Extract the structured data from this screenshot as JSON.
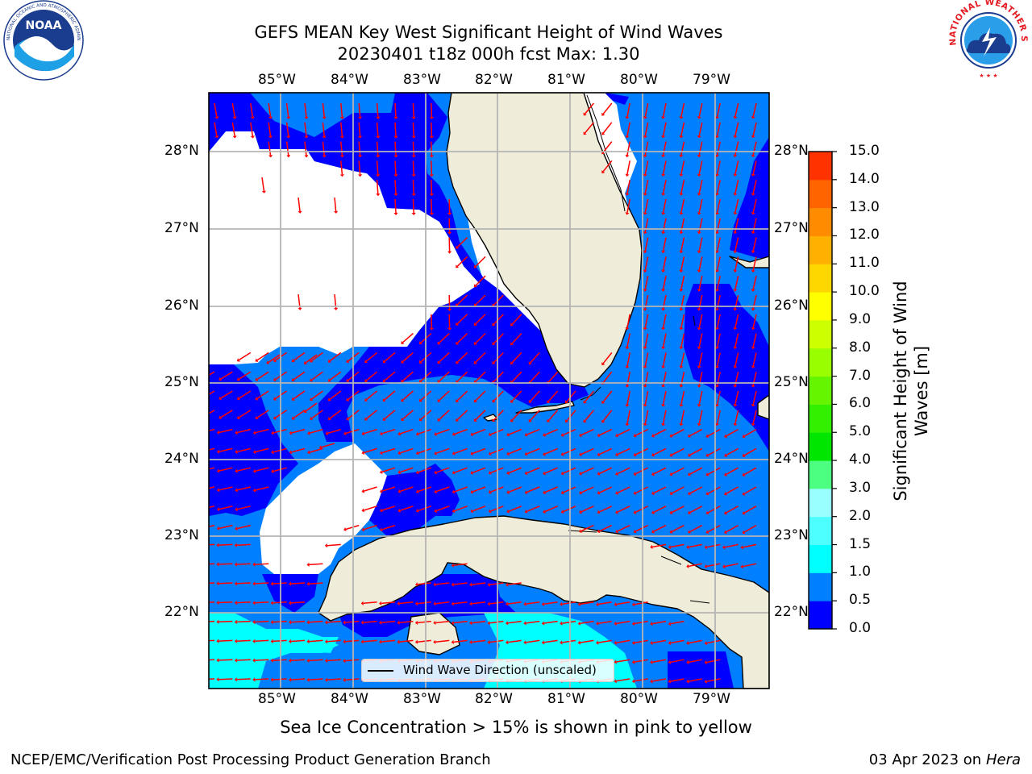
{
  "header": {
    "title_line1": "GEFS MEAN Key West Significant Height of Wind Waves",
    "title_line2": "20230401 t18z 000h fcst   Max: 1.30"
  },
  "logos": {
    "left_text": "NOAA",
    "left_ring": "NATIONAL OCEANIC AND ATMOSPHERIC ADMINISTRATION · U.S. DEPARTMENT OF COMMERCE",
    "right_ring": "NATIONAL WEATHER SERVICE"
  },
  "map": {
    "lon_labels": [
      "85°W",
      "84°W",
      "83°W",
      "82°W",
      "81°W",
      "80°W",
      "79°W"
    ],
    "lat_labels": [
      "28°N",
      "27°N",
      "26°N",
      "25°N",
      "24°N",
      "23°N",
      "22°N"
    ],
    "extent": {
      "lon": [
        -86.0,
        -78.2
      ],
      "lat": [
        21.1,
        28.8
      ]
    },
    "legend": "Wind Wave Direction (unscaled)",
    "colors": {
      "land": "#efedda",
      "grid": "#b4b4b4",
      "arrow": "#ff0000",
      "band_0_0_5": "#0000ff",
      "band_0_5_1_0": "#0080ff",
      "band_1_0_1_5": "#00ffff"
    }
  },
  "colorbar": {
    "label_line1": "Significant Height of Wind",
    "label_line2": "Waves [m]",
    "ticks": [
      "0.0",
      "0.5",
      "1.0",
      "1.5",
      "2.0",
      "3.0",
      "4.0",
      "5.0",
      "6.0",
      "7.0",
      "8.0",
      "9.0",
      "10.0",
      "11.0",
      "12.0",
      "13.0",
      "14.0",
      "15.0"
    ],
    "colors": [
      "#0000ff",
      "#0080ff",
      "#00ffff",
      "#4dffff",
      "#99ffff",
      "#4dff80",
      "#00e600",
      "#33f000",
      "#66f500",
      "#99ff00",
      "#ccff00",
      "#ffff00",
      "#ffd700",
      "#ffb000",
      "#ff8c00",
      "#ff6400",
      "#ff3200"
    ]
  },
  "footer": {
    "note": "Sea Ice Concentration > 15% is shown in pink to yellow",
    "left": "NCEP/EMC/Verification Post Processing Product Generation Branch",
    "right_date": "03 Apr 2023 on ",
    "right_host": "Hera"
  }
}
